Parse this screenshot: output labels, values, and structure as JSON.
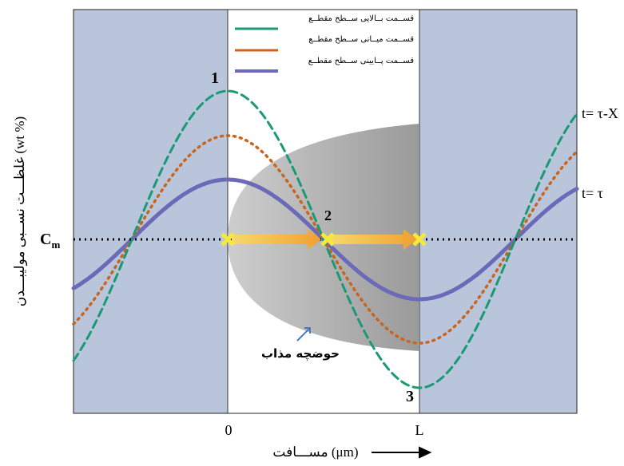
{
  "legend": {
    "items": [
      "قســمت بــالایی ســطح مقطــع",
      "قســمت میــانی ســطح مقطــع",
      "قســمت پــایینی ســطح مقطــع"
    ]
  },
  "axes": {
    "y_label": "غلظـــت نســبی مولیبـــدن (wt %)",
    "x_label": "مســـافت (μm)",
    "x_ticks": [
      "0",
      "L"
    ],
    "c_symbol": "C",
    "c_subscript": "m"
  },
  "annotations": {
    "point_1": "1",
    "point_2": "2",
    "point_3": "3",
    "curve_upper": "t= τ-X",
    "curve_lower": "t= τ",
    "pool": "حوضچه مذاب"
  }
}
